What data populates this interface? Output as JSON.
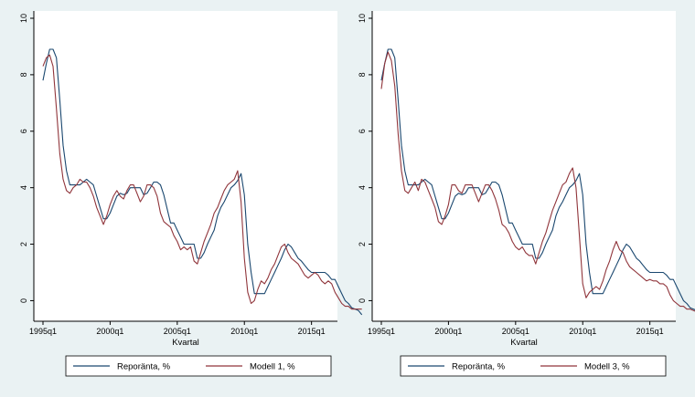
{
  "colors": {
    "outer_background": "#eaf2f3",
    "plot_background": "#ffffff",
    "series_1": "#1a476f",
    "series_2": "#90353b",
    "axis": "#000000"
  },
  "chart_data": [
    {
      "type": "line",
      "xlabel": "Kvartal",
      "ylabel": "",
      "x_start": "1995q1",
      "x_tick_labels": [
        "1995q1",
        "2000q1",
        "2005q1",
        "2010q1",
        "2015q1"
      ],
      "y_tick_labels": [
        "0",
        "2",
        "4",
        "6",
        "8",
        "10"
      ],
      "xlim": [
        "1995q1",
        "2016q2"
      ],
      "ylim": [
        -0.6,
        10
      ],
      "grid": false,
      "legend_position": "bottom",
      "series": [
        {
          "name": "Reporänta, %",
          "color": "#1a476f",
          "values": [
            7.8,
            8.4,
            8.9,
            8.9,
            8.6,
            7.1,
            5.5,
            4.6,
            4.1,
            4.1,
            4.1,
            4.1,
            4.2,
            4.3,
            4.2,
            4.1,
            3.7,
            3.3,
            2.9,
            2.9,
            3.1,
            3.4,
            3.7,
            3.8,
            3.75,
            3.8,
            4,
            4,
            4,
            4,
            3.75,
            3.8,
            4,
            4.2,
            4.2,
            4.1,
            3.75,
            3.25,
            2.75,
            2.75,
            2.5,
            2.25,
            2,
            2,
            2,
            2,
            1.5,
            1.5,
            1.7,
            2,
            2.25,
            2.5,
            3,
            3.3,
            3.5,
            3.75,
            4,
            4.1,
            4.25,
            4.5,
            3.75,
            2,
            1,
            0.25,
            0.25,
            0.25,
            0.25,
            0.5,
            0.75,
            1,
            1.25,
            1.5,
            1.8,
            2,
            1.9,
            1.7,
            1.5,
            1.4,
            1.25,
            1.1,
            1,
            1,
            1,
            1,
            1,
            0.9,
            0.75,
            0.75,
            0.5,
            0.25,
            0,
            -0.1,
            -0.25,
            -0.3,
            -0.35,
            -0.5
          ],
          "values_panel_2": [
            7.8,
            8.4,
            8.9,
            8.9,
            8.6,
            7.1,
            5.5,
            4.6,
            4.1,
            4.1,
            4.1,
            4.1,
            4.2,
            4.3,
            4.2,
            4.1,
            3.7,
            3.3,
            2.9,
            2.9,
            3.1,
            3.4,
            3.7,
            3.8,
            3.75,
            3.8,
            4,
            4,
            4,
            4,
            3.75,
            3.8,
            4,
            4.2,
            4.2,
            4.1,
            3.75,
            3.25,
            2.75,
            2.75,
            2.5,
            2.25,
            2,
            2,
            2,
            2,
            1.5,
            1.5,
            1.7,
            2,
            2.25,
            2.5,
            3,
            3.3,
            3.5,
            3.75,
            4,
            4.1,
            4.25,
            4.5,
            3.75,
            2,
            1,
            0.25,
            0.25,
            0.25,
            0.25,
            0.5,
            0.75,
            1,
            1.25,
            1.5,
            1.8,
            2,
            1.9,
            1.7,
            1.5,
            1.4,
            1.25,
            1.1,
            1,
            1,
            1,
            1,
            1,
            0.9,
            0.75,
            0.75,
            0.5,
            0.25,
            0,
            -0.1,
            -0.25,
            -0.3,
            -0.35,
            -0.5
          ]
        },
        {
          "name": "Modell 1, %",
          "color": "#90353b",
          "values": [
            8.3,
            8.6,
            8.7,
            8.3,
            6.8,
            5.2,
            4.3,
            3.9,
            3.8,
            4,
            4.1,
            4.3,
            4.2,
            4.2,
            4,
            3.7,
            3.3,
            3,
            2.7,
            3,
            3.4,
            3.7,
            3.9,
            3.7,
            3.6,
            3.9,
            4.1,
            4.1,
            3.8,
            3.5,
            3.7,
            4.1,
            4.1,
            4,
            3.7,
            3.1,
            2.8,
            2.7,
            2.6,
            2.3,
            2.1,
            1.8,
            1.9,
            1.8,
            1.9,
            1.4,
            1.3,
            1.7,
            2.1,
            2.4,
            2.7,
            3.1,
            3.3,
            3.6,
            3.9,
            4.1,
            4.2,
            4.3,
            4.6,
            3.5,
            1.5,
            0.3,
            -0.1,
            0,
            0.4,
            0.7,
            0.6,
            0.8,
            1.1,
            1.3,
            1.6,
            1.9,
            2,
            1.7,
            1.5,
            1.4,
            1.3,
            1.1,
            0.9,
            0.8,
            0.9,
            1,
            0.9,
            0.7,
            0.6,
            0.7,
            0.6,
            0.3,
            0.1,
            -0.1,
            -0.2,
            -0.2,
            -0.3,
            -0.3,
            -0.3,
            -0.3
          ],
          "values_panel_2": []
        }
      ]
    },
    {
      "type": "line",
      "xlabel": "Kvartal",
      "ylabel": "",
      "x_start": "1995q1",
      "x_tick_labels": [
        "1995q1",
        "2000q1",
        "2005q1",
        "2010q1",
        "2015q1"
      ],
      "y_tick_labels": [
        "0",
        "2",
        "4",
        "6",
        "8",
        "10"
      ],
      "xlim": [
        "1995q1",
        "2016q2"
      ],
      "ylim": [
        -0.6,
        10
      ],
      "grid": false,
      "legend_position": "bottom",
      "series": [
        {
          "name": "Reporänta, %",
          "color": "#1a476f",
          "values": [
            7.8,
            8.4,
            8.9,
            8.9,
            8.6,
            7.1,
            5.5,
            4.6,
            4.1,
            4.1,
            4.1,
            4.1,
            4.2,
            4.3,
            4.2,
            4.1,
            3.7,
            3.3,
            2.9,
            2.9,
            3.1,
            3.4,
            3.7,
            3.8,
            3.75,
            3.8,
            4,
            4,
            4,
            4,
            3.75,
            3.8,
            4,
            4.2,
            4.2,
            4.1,
            3.75,
            3.25,
            2.75,
            2.75,
            2.5,
            2.25,
            2,
            2,
            2,
            2,
            1.5,
            1.5,
            1.7,
            2,
            2.25,
            2.5,
            3,
            3.3,
            3.5,
            3.75,
            4,
            4.1,
            4.25,
            4.5,
            3.75,
            2,
            1,
            0.25,
            0.25,
            0.25,
            0.25,
            0.5,
            0.75,
            1,
            1.25,
            1.5,
            1.8,
            2,
            1.9,
            1.7,
            1.5,
            1.4,
            1.25,
            1.1,
            1,
            1,
            1,
            1,
            1,
            0.9,
            0.75,
            0.75,
            0.5,
            0.25,
            0,
            -0.1,
            -0.25,
            -0.3,
            -0.35,
            -0.5
          ]
        },
        {
          "name": "Modell 3, %",
          "color": "#90353b",
          "values": [
            7.5,
            8.4,
            8.8,
            8.5,
            7.6,
            5.9,
            4.6,
            3.9,
            3.8,
            4,
            4.2,
            3.9,
            4.3,
            4.2,
            3.9,
            3.6,
            3.3,
            2.8,
            2.7,
            3,
            3.4,
            4.1,
            4.1,
            3.9,
            3.8,
            4.1,
            4.1,
            4.1,
            3.8,
            3.5,
            3.8,
            4.1,
            4.1,
            3.9,
            3.6,
            3.2,
            2.7,
            2.6,
            2.4,
            2.1,
            1.9,
            1.8,
            1.9,
            1.7,
            1.6,
            1.6,
            1.3,
            1.7,
            2.1,
            2.4,
            2.8,
            3.2,
            3.5,
            3.8,
            4.1,
            4.2,
            4.5,
            4.7,
            4,
            2.3,
            0.6,
            0.1,
            0.3,
            0.4,
            0.5,
            0.4,
            0.7,
            1.1,
            1.4,
            1.8,
            2.1,
            1.8,
            1.7,
            1.4,
            1.2,
            1.1,
            1,
            0.9,
            0.8,
            0.7,
            0.75,
            0.7,
            0.7,
            0.6,
            0.6,
            0.5,
            0.2,
            0,
            -0.1,
            -0.2,
            -0.2,
            -0.3,
            -0.3,
            -0.35,
            -0.4,
            -0.45
          ]
        }
      ]
    }
  ]
}
